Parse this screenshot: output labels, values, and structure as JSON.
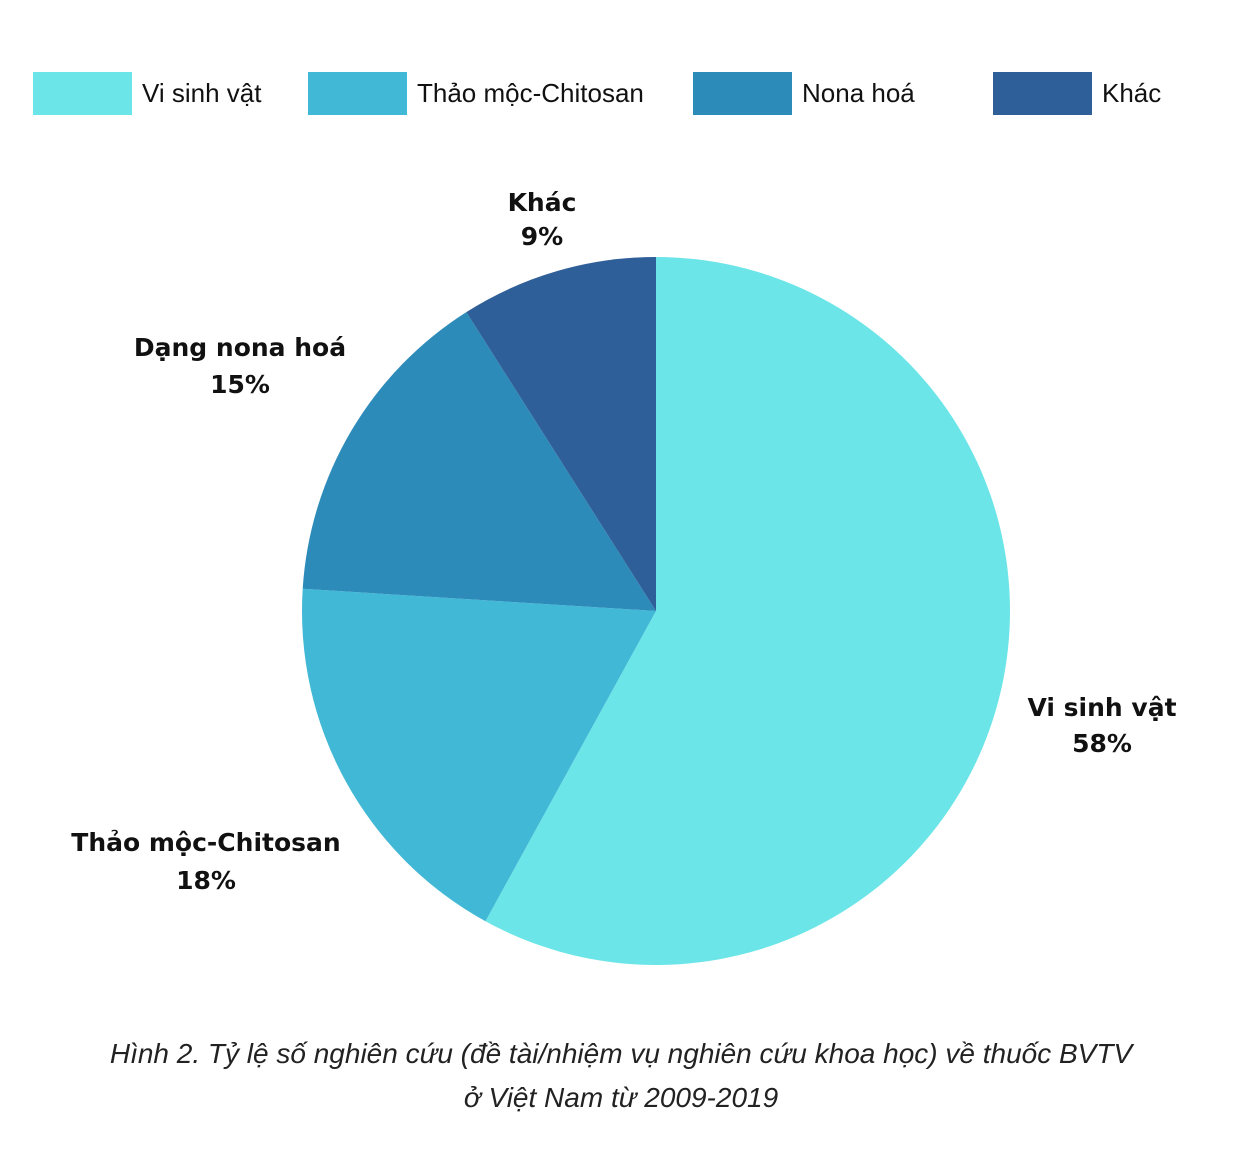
{
  "chart_data": {
    "type": "pie",
    "categories": [
      "Vi sinh vật",
      "Thảo mộc-Chitosan",
      "Nona hoá",
      "Khác"
    ],
    "values": [
      58,
      18,
      15,
      9
    ],
    "unit": "%",
    "colors": [
      "#6ce5e8",
      "#41b8d5",
      "#2d8bba",
      "#2f5f98"
    ],
    "slice_labels": [
      {
        "name": "Vi sinh vật",
        "value": "58%"
      },
      {
        "name": "Thảo mộc-Chitosan",
        "value": "18%"
      },
      {
        "name": "Dạng nona hoá",
        "value": "15%"
      },
      {
        "name": "Khác",
        "value": "9%"
      }
    ],
    "legend_placement": "top",
    "start_angle": "12 o'clock",
    "direction": "clockwise"
  },
  "legend": {
    "items": [
      {
        "label": "Vi sinh vật",
        "color": "#6ce5e8"
      },
      {
        "label": "Thảo mộc-Chitosan",
        "color": "#41b8d5"
      },
      {
        "label": "Nona hoá",
        "color": "#2d8bba"
      },
      {
        "label": "Khác",
        "color": "#2f5f98"
      }
    ]
  },
  "caption": {
    "line1": "Hình 2. Tỷ lệ số nghiên cứu (đề tài/nhiệm vụ nghiên cứu khoa học) về thuốc BVTV",
    "line2": "ở Việt Nam từ 2009-2019"
  }
}
